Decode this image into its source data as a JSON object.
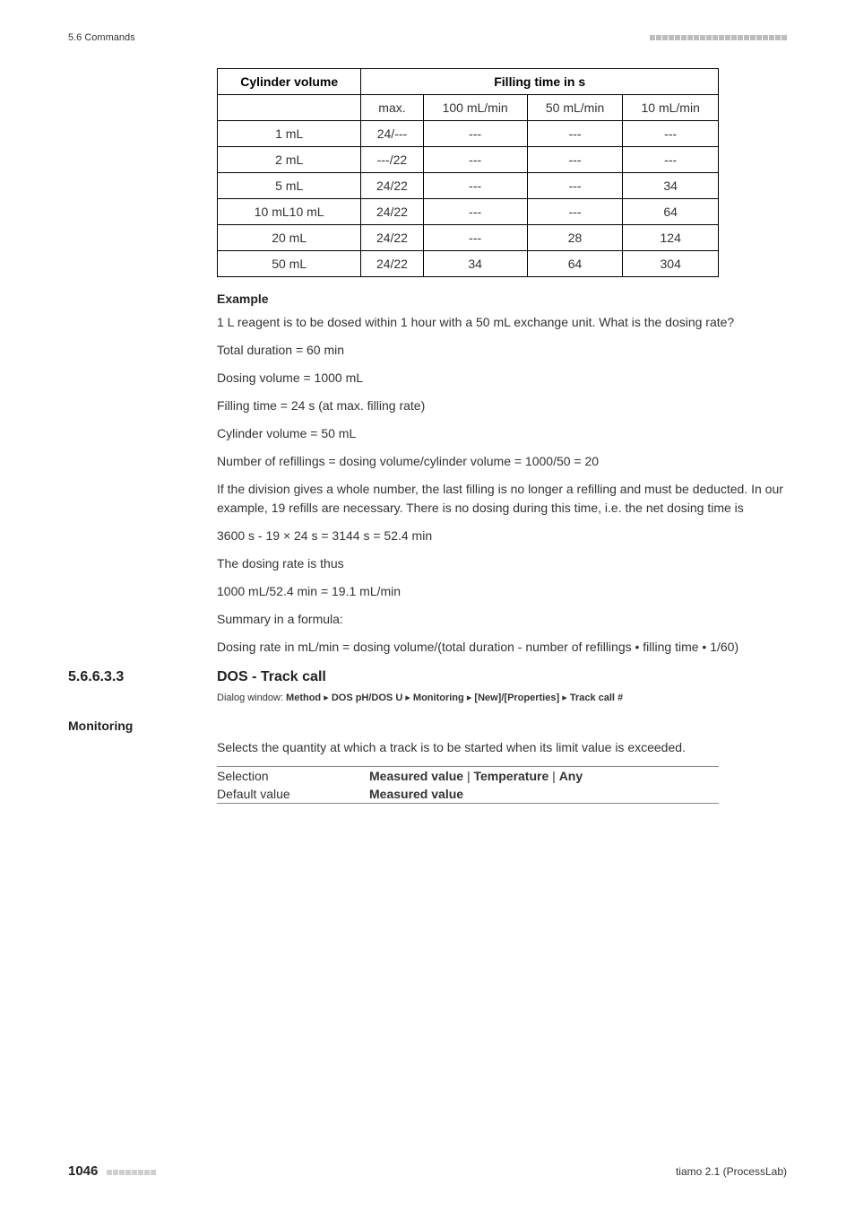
{
  "runhead": {
    "left": "5.6 Commands"
  },
  "table": {
    "headers": {
      "col1": "Cylinder volume",
      "col2": "Filling time in s"
    },
    "subheaders": [
      "max.",
      "100 mL/min",
      "50 mL/min",
      "10 mL/min"
    ],
    "rows": [
      {
        "vol": "1 mL",
        "c": [
          "24/---",
          "---",
          "---",
          "---"
        ]
      },
      {
        "vol": "2 mL",
        "c": [
          "---/22",
          "---",
          "---",
          "---"
        ]
      },
      {
        "vol": "5 mL",
        "c": [
          "24/22",
          "---",
          "---",
          "34"
        ]
      },
      {
        "vol": "10 mL10 mL",
        "c": [
          "24/22",
          "---",
          "---",
          "64"
        ]
      },
      {
        "vol": "20 mL",
        "c": [
          "24/22",
          "---",
          "28",
          "124"
        ]
      },
      {
        "vol": "50 mL",
        "c": [
          "24/22",
          "34",
          "64",
          "304"
        ]
      }
    ]
  },
  "example": {
    "heading": "Example",
    "lines": [
      "1 L reagent is to be dosed within 1 hour with a 50 mL exchange unit. What is the dosing rate?",
      "Total duration = 60 min",
      "Dosing volume = 1000 mL",
      "Filling time = 24 s (at max. filling rate)",
      "Cylinder volume = 50 mL",
      "Number of refillings = dosing volume/cylinder volume = 1000/50 = 20",
      "If the division gives a whole number, the last filling is no longer a refilling and must be deducted. In our example, 19 refills are necessary. There is no dosing during this time, i.e. the net dosing time is",
      "3600 s - 19 × 24 s = 3144 s = 52.4 min",
      "The dosing rate is thus",
      "1000 mL/52.4 min = 19.1 mL/min",
      "Summary in a formula:",
      "Dosing rate in mL/min = dosing volume/(total duration - number of refillings • filling time • 1/60)"
    ]
  },
  "section": {
    "num": "5.6.6.3.3",
    "title": "DOS - Track call",
    "dialog_prefix": "Dialog window: ",
    "dialog_path": [
      "Method",
      "DOS pH/DOS U",
      "Monitoring",
      "[New]/[Properties]",
      "Track call #"
    ]
  },
  "monitoring": {
    "label": "Monitoring",
    "desc": "Selects the quantity at which a track is to be started when its limit value is exceeded.",
    "rows": [
      {
        "k": "Selection",
        "v_bold": "Measured value",
        "v_sep": " | ",
        "v_bold2": "Temperature",
        "v_sep2": " | ",
        "v_bold3": "Any"
      },
      {
        "k": "Default value",
        "v_bold": "Measured value"
      }
    ]
  },
  "footer": {
    "page": "1046",
    "right": "tiamo 2.1 (ProcessLab)"
  }
}
